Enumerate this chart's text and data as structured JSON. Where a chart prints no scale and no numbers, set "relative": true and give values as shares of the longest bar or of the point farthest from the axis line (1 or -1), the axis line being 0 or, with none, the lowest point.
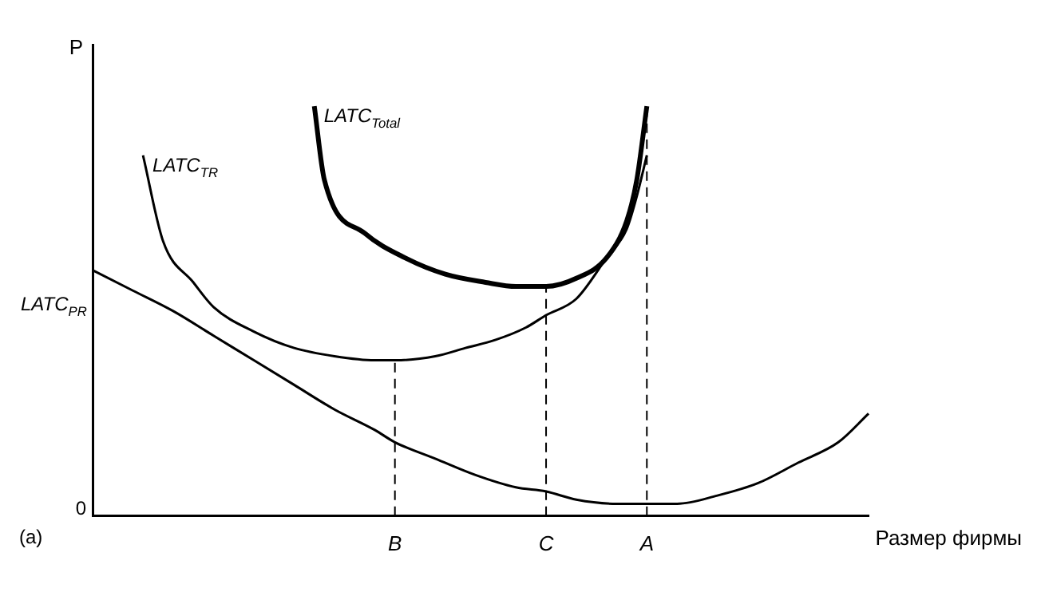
{
  "chart_data": {
    "type": "line",
    "relative": true,
    "xlabel": "Размер фирмы",
    "ylabel": "P",
    "grid": false,
    "legend": false,
    "marker": "none",
    "categories": [
      null,
      null,
      null,
      null,
      null,
      null,
      null,
      null,
      null,
      null,
      null,
      null,
      null,
      null,
      null,
      null,
      null,
      null,
      null,
      null,
      null,
      null,
      null,
      null,
      null,
      null,
      null,
      null,
      null,
      null,
      "B",
      null,
      null,
      null,
      null,
      null,
      null,
      null,
      null,
      null,
      null,
      null,
      null,
      null,
      null,
      "C",
      null,
      null,
      null,
      null,
      null,
      null,
      null,
      null,
      null,
      "A",
      null,
      null,
      null,
      null,
      null,
      null,
      null,
      null,
      null,
      null,
      null,
      null,
      null,
      null,
      null,
      null,
      null,
      null,
      null,
      null,
      null,
      null
    ],
    "series": [
      {
        "name": "LATC$_{PR}$",
        "color": "#000000",
        "line_style": "solid",
        "values": [
          0.6,
          null,
          null,
          null,
          0.55,
          null,
          null,
          null,
          0.5,
          null,
          null,
          null,
          0.44,
          null,
          null,
          null,
          0.38,
          null,
          null,
          null,
          0.32,
          null,
          null,
          null,
          0.26,
          null,
          null,
          null,
          0.21,
          null,
          0.18,
          null,
          null,
          null,
          0.14,
          null,
          null,
          null,
          0.1,
          null,
          null,
          null,
          0.07,
          null,
          null,
          0.06,
          null,
          null,
          0.04,
          null,
          null,
          null,
          0.03,
          null,
          null,
          0.03,
          null,
          null,
          0.03,
          null,
          null,
          null,
          0.05,
          null,
          null,
          null,
          0.08,
          null,
          null,
          null,
          0.13,
          null,
          null,
          null,
          0.18,
          null,
          null,
          0.25
        ]
      },
      {
        "name": "LATC$_{TR}$",
        "color": "#000000",
        "line_style": "solid",
        "values": [
          null,
          null,
          null,
          null,
          null,
          0.88,
          null,
          0.67,
          null,
          null,
          0.57,
          null,
          0.51,
          null,
          null,
          null,
          0.45,
          null,
          null,
          null,
          0.41,
          null,
          null,
          null,
          0.39,
          null,
          null,
          null,
          0.38,
          null,
          0.38,
          null,
          null,
          null,
          0.39,
          null,
          null,
          0.41,
          null,
          null,
          0.43,
          null,
          null,
          0.46,
          null,
          0.49,
          null,
          null,
          0.53,
          null,
          null,
          0.63,
          null,
          0.7,
          0.78,
          0.88,
          null,
          null,
          null,
          null,
          null,
          null,
          null,
          null,
          null,
          null,
          null,
          null,
          null,
          null,
          null,
          null,
          null,
          null,
          null,
          null,
          null,
          null
        ]
      },
      {
        "name": "LATC$_{Total}$",
        "color": "#000000",
        "line_style": "solid",
        "values": [
          null,
          null,
          null,
          null,
          null,
          null,
          null,
          null,
          null,
          null,
          null,
          null,
          null,
          null,
          null,
          null,
          null,
          null,
          null,
          null,
          null,
          null,
          1.0,
          0.82,
          null,
          null,
          null,
          0.69,
          null,
          null,
          null,
          0.63,
          null,
          null,
          null,
          0.59,
          null,
          null,
          null,
          0.57,
          null,
          null,
          0.56,
          null,
          null,
          0.56,
          null,
          null,
          0.58,
          null,
          null,
          0.63,
          null,
          0.72,
          0.82,
          1.0,
          null,
          null,
          null,
          null,
          null,
          null,
          null,
          null,
          null,
          null,
          null,
          null,
          null,
          null,
          null,
          null,
          null,
          null,
          null,
          null,
          null,
          null
        ]
      }
    ],
    "ref_lines": [
      {
        "axis": "x",
        "value": "B",
        "line_style": "dashed"
      },
      {
        "axis": "x",
        "value": "C",
        "line_style": "dashed"
      },
      {
        "axis": "x",
        "value": "A",
        "line_style": "dashed"
      }
    ],
    "annotations": [
      "0",
      "(a)"
    ]
  }
}
